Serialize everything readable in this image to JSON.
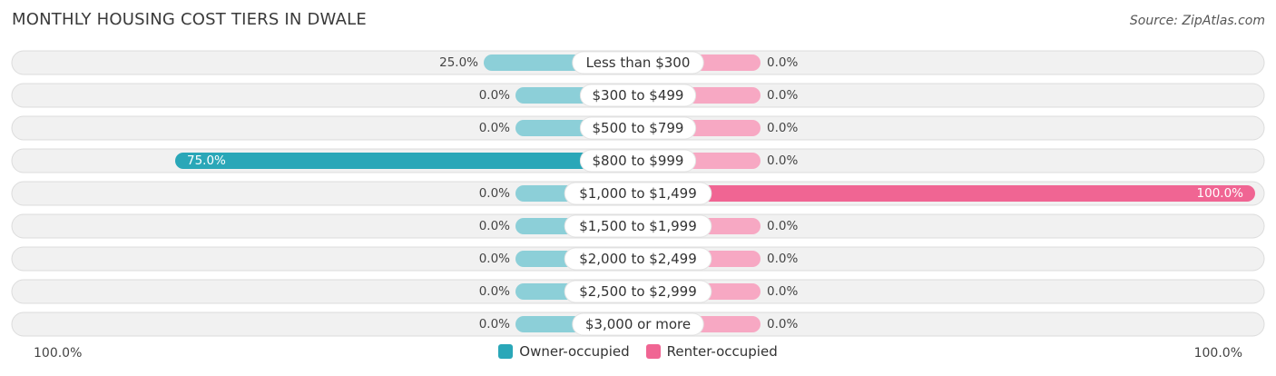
{
  "header": {
    "title": "MONTHLY HOUSING COST TIERS IN DWALE",
    "source": "Source: ZipAtlas.com"
  },
  "chart_data": {
    "type": "bar",
    "orientation": "horizontal-diverging",
    "categories": [
      "Less than $300",
      "$300 to $499",
      "$500 to $799",
      "$800 to $999",
      "$1,000 to $1,499",
      "$1,500 to $1,999",
      "$2,000 to $2,499",
      "$2,500 to $2,999",
      "$3,000 or more"
    ],
    "series": [
      {
        "name": "Owner-occupied",
        "values": [
          25.0,
          0.0,
          0.0,
          75.0,
          0.0,
          0.0,
          0.0,
          0.0,
          0.0
        ],
        "labels": [
          "25.0%",
          "0.0%",
          "0.0%",
          "75.0%",
          "0.0%",
          "0.0%",
          "0.0%",
          "0.0%",
          "0.0%"
        ],
        "color": "#2aa7b8",
        "light_color": "#8ccfd8"
      },
      {
        "name": "Renter-occupied",
        "values": [
          0.0,
          0.0,
          0.0,
          0.0,
          100.0,
          0.0,
          0.0,
          0.0,
          0.0
        ],
        "labels": [
          "0.0%",
          "0.0%",
          "0.0%",
          "0.0%",
          "100.0%",
          "0.0%",
          "0.0%",
          "0.0%",
          "0.0%"
        ],
        "color": "#f06593",
        "light_color": "#f7a8c3"
      }
    ],
    "xlim": [
      -100,
      100
    ],
    "axis_labels": {
      "left": "100.0%",
      "right": "100.0%"
    },
    "legend_position": "bottom-center"
  }
}
